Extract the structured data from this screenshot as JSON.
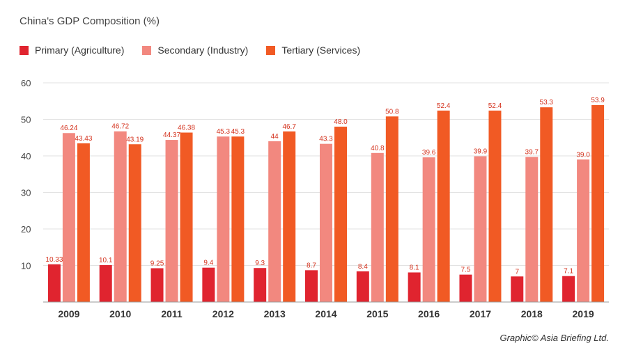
{
  "title": "China's GDP Composition (%)",
  "credit": "Graphic© Asia Briefing Ltd.",
  "colors": {
    "primary": "#e0242f",
    "secondary": "#f2887f",
    "tertiary": "#f15a24"
  },
  "chart_data": {
    "type": "bar",
    "title": "China's GDP Composition (%)",
    "xlabel": "",
    "ylabel": "",
    "ylim": [
      0,
      60
    ],
    "yticks": [
      10,
      20,
      30,
      40,
      50,
      60
    ],
    "grid": true,
    "legend_position": "top-left",
    "categories": [
      "2009",
      "2010",
      "2011",
      "2012",
      "2013",
      "2014",
      "2015",
      "2016",
      "2017",
      "2018",
      "2019"
    ],
    "series": [
      {
        "name": "Primary (Agriculture)",
        "color": "#e0242f",
        "values": [
          10.33,
          10.1,
          9.25,
          9.4,
          9.3,
          8.7,
          8.4,
          8.1,
          7.5,
          7,
          7.1
        ],
        "labels": [
          "10.33",
          "10.1",
          "9.25",
          "9.4",
          "9.3",
          "8.7",
          "8.4",
          "8.1",
          "7.5",
          "7",
          "7.1"
        ]
      },
      {
        "name": "Secondary (Industry)",
        "color": "#f2887f",
        "values": [
          46.24,
          46.72,
          44.37,
          45.3,
          44,
          43.3,
          40.8,
          39.6,
          39.9,
          39.7,
          39.0
        ],
        "labels": [
          "46.24",
          "46.72",
          "44.37",
          "45.3",
          "44",
          "43.3",
          "40.8",
          "39.6",
          "39.9",
          "39.7",
          "39.0"
        ]
      },
      {
        "name": "Tertiary (Services)",
        "color": "#f15a24",
        "values": [
          43.43,
          43.19,
          46.38,
          45.3,
          46.7,
          48.0,
          50.8,
          52.4,
          52.4,
          53.3,
          53.9
        ],
        "labels": [
          "43.43",
          "43.19",
          "46.38",
          "45.3",
          "46.7",
          "48.0",
          "50.8",
          "52.4",
          "52.4",
          "53.3",
          "53.9"
        ]
      }
    ]
  }
}
